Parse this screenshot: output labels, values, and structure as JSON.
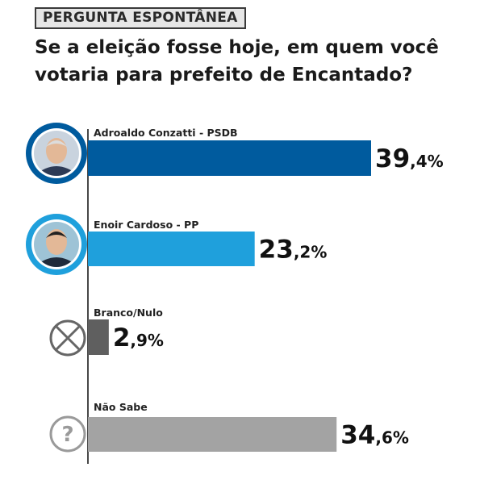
{
  "header": {
    "tag": "PERGUNTA ESPONTÂNEA",
    "question_line1": "Se a eleição fosse hoje, em quem você",
    "question_line2": "votaria para prefeito de Encantado?"
  },
  "chart_data": {
    "type": "bar",
    "orientation": "horizontal",
    "title": "Se a eleição fosse hoje, em quem você votaria para prefeito de Encantado?",
    "categories": [
      "Adroaldo Conzatti - PSDB",
      "Enoir Cardoso - PP",
      "Branco/Nulo",
      "Não Sabe"
    ],
    "values": [
      39.4,
      23.2,
      2.9,
      34.6
    ],
    "value_labels": [
      {
        "int": "39",
        "dec": ",4%"
      },
      {
        "int": "23",
        "dec": ",2%"
      },
      {
        "int": "2",
        "dec": ",9%"
      },
      {
        "int": "34",
        "dec": ",6%"
      }
    ],
    "colors": [
      "#005b9e",
      "#1fa0dc",
      "#5f5f5f",
      "#a3a3a3"
    ],
    "ring_colors": [
      "#005b9e",
      "#1fa0dc",
      null,
      null
    ],
    "icons": [
      "candidate-photo",
      "candidate-photo",
      "cross-circle-icon",
      "question-circle-icon"
    ],
    "grid": false,
    "legend": "none"
  }
}
